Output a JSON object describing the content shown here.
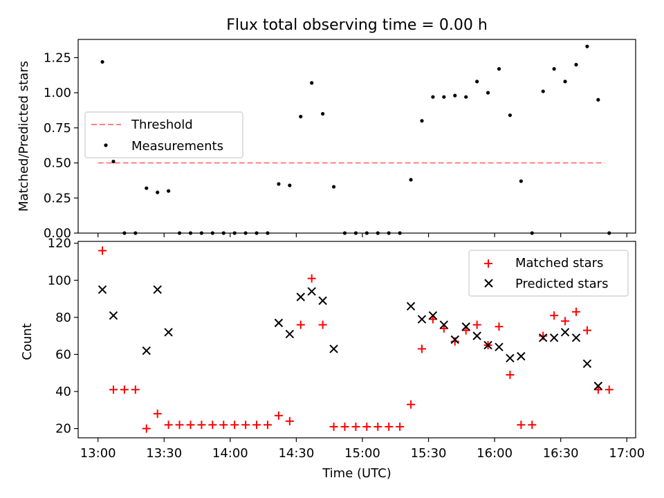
{
  "chart_data": [
    {
      "type": "scatter",
      "title": "Flux total observing time = 0.00 h",
      "ylabel": "Matched/Predicted stars",
      "xlabel": "",
      "ylim": [
        0,
        1.38
      ],
      "yticks": [
        "0.00",
        "0.25",
        "0.50",
        "0.75",
        "1.00",
        "1.25"
      ],
      "ytick_values": [
        0,
        0.25,
        0.5,
        0.75,
        1.0,
        1.25
      ],
      "legend": {
        "placement": "center-left",
        "entries": [
          "Threshold",
          "Measurements"
        ]
      },
      "threshold": {
        "name": "Threshold",
        "value": 0.5,
        "x_range": [
          "13:00",
          "16:50"
        ],
        "color": "#ff8080"
      },
      "series": [
        {
          "name": "Measurements",
          "color": "#000000",
          "points": [
            [
              "13:02",
              1.22
            ],
            [
              "13:07",
              0.51
            ],
            [
              "13:12",
              0.0
            ],
            [
              "13:17",
              0.0
            ],
            [
              "13:22",
              0.32
            ],
            [
              "13:27",
              0.29
            ],
            [
              "13:32",
              0.3
            ],
            [
              "13:37",
              0.0
            ],
            [
              "13:42",
              0.0
            ],
            [
              "13:47",
              0.0
            ],
            [
              "13:52",
              0.0
            ],
            [
              "13:57",
              0.0
            ],
            [
              "14:02",
              0.0
            ],
            [
              "14:07",
              0.0
            ],
            [
              "14:12",
              0.0
            ],
            [
              "14:17",
              0.0
            ],
            [
              "14:22",
              0.35
            ],
            [
              "14:27",
              0.34
            ],
            [
              "14:32",
              0.83
            ],
            [
              "14:37",
              1.07
            ],
            [
              "14:42",
              0.85
            ],
            [
              "14:47",
              0.33
            ],
            [
              "14:52",
              0.0
            ],
            [
              "14:57",
              0.0
            ],
            [
              "15:02",
              0.0
            ],
            [
              "15:07",
              0.0
            ],
            [
              "15:12",
              0.0
            ],
            [
              "15:17",
              0.0
            ],
            [
              "15:22",
              0.38
            ],
            [
              "15:27",
              0.8
            ],
            [
              "15:32",
              0.97
            ],
            [
              "15:37",
              0.97
            ],
            [
              "15:42",
              0.98
            ],
            [
              "15:47",
              0.97
            ],
            [
              "15:52",
              1.08
            ],
            [
              "15:57",
              1.0
            ],
            [
              "16:02",
              1.17
            ],
            [
              "16:07",
              0.84
            ],
            [
              "16:12",
              0.37
            ],
            [
              "16:17",
              0.0
            ],
            [
              "16:22",
              1.01
            ],
            [
              "16:27",
              1.17
            ],
            [
              "16:32",
              1.08
            ],
            [
              "16:37",
              1.2
            ],
            [
              "16:42",
              1.33
            ],
            [
              "16:47",
              0.95
            ],
            [
              "16:52",
              0.0
            ]
          ]
        }
      ]
    },
    {
      "type": "scatter",
      "title": "",
      "xlabel": "Time (UTC)",
      "ylabel": "Count",
      "ylim": [
        15,
        121
      ],
      "xlim": [
        "12:51",
        "17:04"
      ],
      "xticks": [
        "13:00",
        "13:30",
        "14:00",
        "14:30",
        "15:00",
        "15:30",
        "16:00",
        "16:30",
        "17:00"
      ],
      "yticks": [
        "20",
        "40",
        "60",
        "80",
        "100",
        "120"
      ],
      "ytick_values": [
        20,
        40,
        60,
        80,
        100,
        120
      ],
      "legend": {
        "placement": "top-right",
        "entries": [
          "Matched stars",
          "Predicted stars"
        ]
      },
      "series": [
        {
          "name": "Matched stars",
          "marker": "+",
          "color": "#ff0000",
          "points": [
            [
              "13:02",
              116
            ],
            [
              "13:07",
              41
            ],
            [
              "13:12",
              41
            ],
            [
              "13:17",
              41
            ],
            [
              "13:22",
              20
            ],
            [
              "13:27",
              28
            ],
            [
              "13:32",
              22
            ],
            [
              "13:37",
              22
            ],
            [
              "13:42",
              22
            ],
            [
              "13:47",
              22
            ],
            [
              "13:52",
              22
            ],
            [
              "13:57",
              22
            ],
            [
              "14:02",
              22
            ],
            [
              "14:07",
              22
            ],
            [
              "14:12",
              22
            ],
            [
              "14:17",
              22
            ],
            [
              "14:22",
              27
            ],
            [
              "14:27",
              24
            ],
            [
              "14:32",
              76
            ],
            [
              "14:37",
              101
            ],
            [
              "14:42",
              76
            ],
            [
              "14:47",
              21
            ],
            [
              "14:52",
              21
            ],
            [
              "14:57",
              21
            ],
            [
              "15:02",
              21
            ],
            [
              "15:07",
              21
            ],
            [
              "15:12",
              21
            ],
            [
              "15:17",
              21
            ],
            [
              "15:22",
              33
            ],
            [
              "15:27",
              63
            ],
            [
              "15:32",
              79
            ],
            [
              "15:37",
              74
            ],
            [
              "15:42",
              67
            ],
            [
              "15:47",
              73
            ],
            [
              "15:52",
              76
            ],
            [
              "15:57",
              65
            ],
            [
              "16:02",
              75
            ],
            [
              "16:07",
              49
            ],
            [
              "16:12",
              22
            ],
            [
              "16:17",
              22
            ],
            [
              "16:22",
              70
            ],
            [
              "16:27",
              81
            ],
            [
              "16:32",
              78
            ],
            [
              "16:37",
              83
            ],
            [
              "16:42",
              73
            ],
            [
              "16:47",
              41
            ],
            [
              "16:52",
              41
            ]
          ]
        },
        {
          "name": "Predicted stars",
          "marker": "x",
          "color": "#000000",
          "points": [
            [
              "13:02",
              95
            ],
            [
              "13:07",
              81
            ],
            [
              "13:22",
              62
            ],
            [
              "13:27",
              95
            ],
            [
              "13:32",
              72
            ],
            [
              "14:22",
              77
            ],
            [
              "14:27",
              71
            ],
            [
              "14:32",
              91
            ],
            [
              "14:37",
              94
            ],
            [
              "14:42",
              89
            ],
            [
              "14:47",
              63
            ],
            [
              "15:22",
              86
            ],
            [
              "15:27",
              79
            ],
            [
              "15:32",
              81
            ],
            [
              "15:37",
              76
            ],
            [
              "15:42",
              68
            ],
            [
              "15:47",
              75
            ],
            [
              "15:52",
              70
            ],
            [
              "15:57",
              65
            ],
            [
              "16:02",
              64
            ],
            [
              "16:07",
              58
            ],
            [
              "16:12",
              59
            ],
            [
              "16:22",
              69
            ],
            [
              "16:27",
              69
            ],
            [
              "16:32",
              72
            ],
            [
              "16:37",
              69
            ],
            [
              "16:42",
              55
            ],
            [
              "16:47",
              43
            ]
          ]
        }
      ]
    }
  ]
}
